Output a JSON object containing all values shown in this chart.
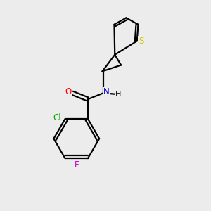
{
  "background_color": "#ececec",
  "bond_color": "#000000",
  "atom_colors": {
    "O": "#ff0000",
    "N": "#0000cd",
    "Cl": "#00aa00",
    "F": "#cc00cc",
    "S": "#cccc00",
    "C": "#000000",
    "H": "#000000"
  },
  "figsize": [
    3.0,
    3.0
  ],
  "dpi": 100,
  "lw": 1.6,
  "fontsize": 8.5
}
